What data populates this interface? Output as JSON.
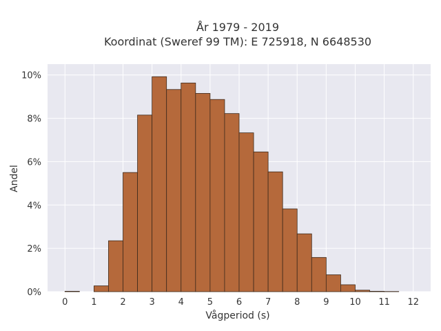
{
  "chart_data": {
    "type": "bar",
    "title_line1": "År 1979 - 2019",
    "title_line2": "Koordinat (Sweref 99 TM): E 725918, N 6648530",
    "xlabel": "Vågperiod (s)",
    "ylabel": "Andel",
    "x_ticks": [
      "0",
      "1",
      "2",
      "3",
      "4",
      "5",
      "6",
      "7",
      "8",
      "9",
      "10",
      "11",
      "12"
    ],
    "y_ticks": [
      "0%",
      "2%",
      "4%",
      "6%",
      "8%",
      "10%"
    ],
    "xlim": [
      -0.6,
      12.6
    ],
    "ylim": [
      0,
      10.5
    ],
    "bin_width": 0.5,
    "bins": [
      {
        "x0": 0.0,
        "value": 0.02
      },
      {
        "x0": 0.5,
        "value": 0.0
      },
      {
        "x0": 1.0,
        "value": 0.27
      },
      {
        "x0": 1.5,
        "value": 2.35
      },
      {
        "x0": 2.0,
        "value": 5.5
      },
      {
        "x0": 2.5,
        "value": 8.15
      },
      {
        "x0": 3.0,
        "value": 9.92
      },
      {
        "x0": 3.5,
        "value": 9.33
      },
      {
        "x0": 4.0,
        "value": 9.63
      },
      {
        "x0": 4.5,
        "value": 9.15
      },
      {
        "x0": 5.0,
        "value": 8.87
      },
      {
        "x0": 5.5,
        "value": 8.22
      },
      {
        "x0": 6.0,
        "value": 7.33
      },
      {
        "x0": 6.5,
        "value": 6.45
      },
      {
        "x0": 7.0,
        "value": 5.53
      },
      {
        "x0": 7.5,
        "value": 3.82
      },
      {
        "x0": 8.0,
        "value": 2.67
      },
      {
        "x0": 8.5,
        "value": 1.58
      },
      {
        "x0": 9.0,
        "value": 0.78
      },
      {
        "x0": 9.5,
        "value": 0.32
      },
      {
        "x0": 10.0,
        "value": 0.07
      },
      {
        "x0": 10.5,
        "value": 0.02
      },
      {
        "x0": 11.0,
        "value": 0.01
      },
      {
        "x0": 11.5,
        "value": 0.0
      }
    ],
    "grid": true,
    "colors": {
      "bar_fill": "#b5693b",
      "bar_stroke": "#3d2a1c",
      "plot_background": "#e8e8f0",
      "grid": "#ffffff"
    }
  }
}
